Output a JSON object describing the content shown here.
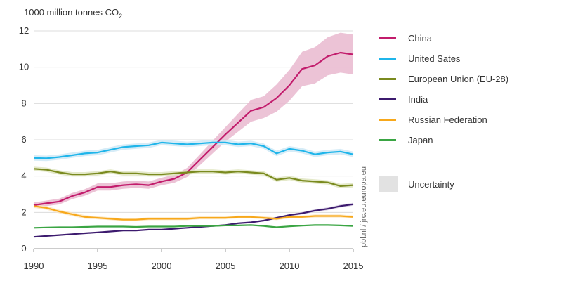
{
  "chart_data": {
    "type": "line",
    "unit_label": "1000 million tonnes CO",
    "unit_sub": "2",
    "source": "pbl.nl / jrc.eu.europa.eu",
    "x": [
      1990,
      1991,
      1992,
      1993,
      1994,
      1995,
      1996,
      1997,
      1998,
      1999,
      2000,
      2001,
      2002,
      2003,
      2004,
      2005,
      2006,
      2007,
      2008,
      2009,
      2010,
      2011,
      2012,
      2013,
      2014,
      2015
    ],
    "xticks": [
      1990,
      1995,
      2000,
      2005,
      2010,
      2015
    ],
    "yticks": [
      0,
      2,
      4,
      6,
      8,
      10,
      12
    ],
    "ylim": [
      0,
      12
    ],
    "xlim": [
      1990,
      2015
    ],
    "grid": "horizontal",
    "legend_position": "right",
    "uncertainty_label": "Uncertainty",
    "series": [
      {
        "name": "China",
        "color": "#c21c6c",
        "band": "#e9b8cf",
        "values": [
          2.4,
          2.5,
          2.6,
          2.9,
          3.1,
          3.4,
          3.4,
          3.5,
          3.55,
          3.5,
          3.7,
          3.85,
          4.2,
          4.9,
          5.6,
          6.3,
          6.95,
          7.6,
          7.8,
          8.3,
          9.0,
          9.9,
          10.1,
          10.6,
          10.8,
          10.7
        ],
        "unc": [
          0.15,
          0.15,
          0.16,
          0.17,
          0.18,
          0.2,
          0.2,
          0.2,
          0.2,
          0.2,
          0.21,
          0.22,
          0.25,
          0.3,
          0.35,
          0.4,
          0.5,
          0.6,
          0.6,
          0.75,
          0.85,
          0.95,
          1.0,
          1.05,
          1.1,
          1.1
        ]
      },
      {
        "name": "United Sates",
        "color": "#1fb5ea",
        "band": "#cfe9f6",
        "values": [
          5.0,
          4.98,
          5.05,
          5.15,
          5.25,
          5.3,
          5.45,
          5.6,
          5.65,
          5.7,
          5.85,
          5.8,
          5.75,
          5.8,
          5.85,
          5.85,
          5.75,
          5.8,
          5.65,
          5.25,
          5.5,
          5.4,
          5.2,
          5.3,
          5.35,
          5.2
        ],
        "unc": [
          0.15,
          0.15,
          0.15,
          0.15,
          0.15,
          0.15,
          0.15,
          0.15,
          0.15,
          0.15,
          0.15,
          0.15,
          0.15,
          0.15,
          0.15,
          0.15,
          0.15,
          0.15,
          0.15,
          0.15,
          0.15,
          0.15,
          0.15,
          0.15,
          0.15,
          0.15
        ]
      },
      {
        "name": "European Union (EU-28)",
        "color": "#7a8a1f",
        "band": "#dfe5c1",
        "values": [
          4.4,
          4.35,
          4.2,
          4.1,
          4.1,
          4.15,
          4.25,
          4.15,
          4.15,
          4.1,
          4.1,
          4.15,
          4.2,
          4.25,
          4.25,
          4.2,
          4.25,
          4.2,
          4.15,
          3.8,
          3.9,
          3.75,
          3.7,
          3.65,
          3.45,
          3.5
        ],
        "unc": [
          0.12,
          0.12,
          0.12,
          0.12,
          0.12,
          0.12,
          0.12,
          0.12,
          0.12,
          0.12,
          0.12,
          0.12,
          0.12,
          0.12,
          0.12,
          0.12,
          0.12,
          0.12,
          0.12,
          0.12,
          0.12,
          0.12,
          0.12,
          0.12,
          0.12,
          0.12
        ]
      },
      {
        "name": "India",
        "color": "#3c1a6e",
        "band": "#d6cbe2",
        "values": [
          0.65,
          0.7,
          0.75,
          0.8,
          0.85,
          0.9,
          0.95,
          1.0,
          1.0,
          1.05,
          1.05,
          1.1,
          1.15,
          1.2,
          1.25,
          1.3,
          1.4,
          1.45,
          1.55,
          1.7,
          1.85,
          1.95,
          2.1,
          2.2,
          2.35,
          2.45
        ],
        "unc": [
          0.03,
          0.03,
          0.03,
          0.03,
          0.03,
          0.03,
          0.03,
          0.03,
          0.03,
          0.03,
          0.03,
          0.03,
          0.03,
          0.04,
          0.04,
          0.04,
          0.05,
          0.05,
          0.05,
          0.06,
          0.06,
          0.07,
          0.07,
          0.08,
          0.08,
          0.08
        ]
      },
      {
        "name": "Russian Federation",
        "color": "#f7a81b",
        "band": "#fbe4bb",
        "values": [
          2.35,
          2.25,
          2.05,
          1.9,
          1.75,
          1.7,
          1.65,
          1.6,
          1.6,
          1.65,
          1.65,
          1.65,
          1.65,
          1.7,
          1.7,
          1.7,
          1.75,
          1.75,
          1.7,
          1.65,
          1.75,
          1.75,
          1.8,
          1.8,
          1.8,
          1.75
        ],
        "unc": [
          0.1,
          0.1,
          0.1,
          0.1,
          0.1,
          0.08,
          0.08,
          0.08,
          0.08,
          0.08,
          0.08,
          0.08,
          0.08,
          0.08,
          0.08,
          0.08,
          0.08,
          0.08,
          0.08,
          0.08,
          0.08,
          0.08,
          0.08,
          0.08,
          0.08,
          0.08
        ]
      },
      {
        "name": "Japan",
        "color": "#3aa543",
        "band": "#cfe8cf",
        "values": [
          1.15,
          1.17,
          1.18,
          1.18,
          1.2,
          1.22,
          1.22,
          1.22,
          1.2,
          1.22,
          1.22,
          1.22,
          1.25,
          1.25,
          1.25,
          1.28,
          1.28,
          1.3,
          1.25,
          1.18,
          1.23,
          1.27,
          1.3,
          1.3,
          1.28,
          1.25
        ],
        "unc": [
          0.03,
          0.03,
          0.03,
          0.03,
          0.03,
          0.03,
          0.03,
          0.03,
          0.03,
          0.03,
          0.03,
          0.03,
          0.03,
          0.03,
          0.03,
          0.03,
          0.03,
          0.03,
          0.03,
          0.03,
          0.03,
          0.03,
          0.03,
          0.03,
          0.03,
          0.03
        ]
      }
    ]
  }
}
